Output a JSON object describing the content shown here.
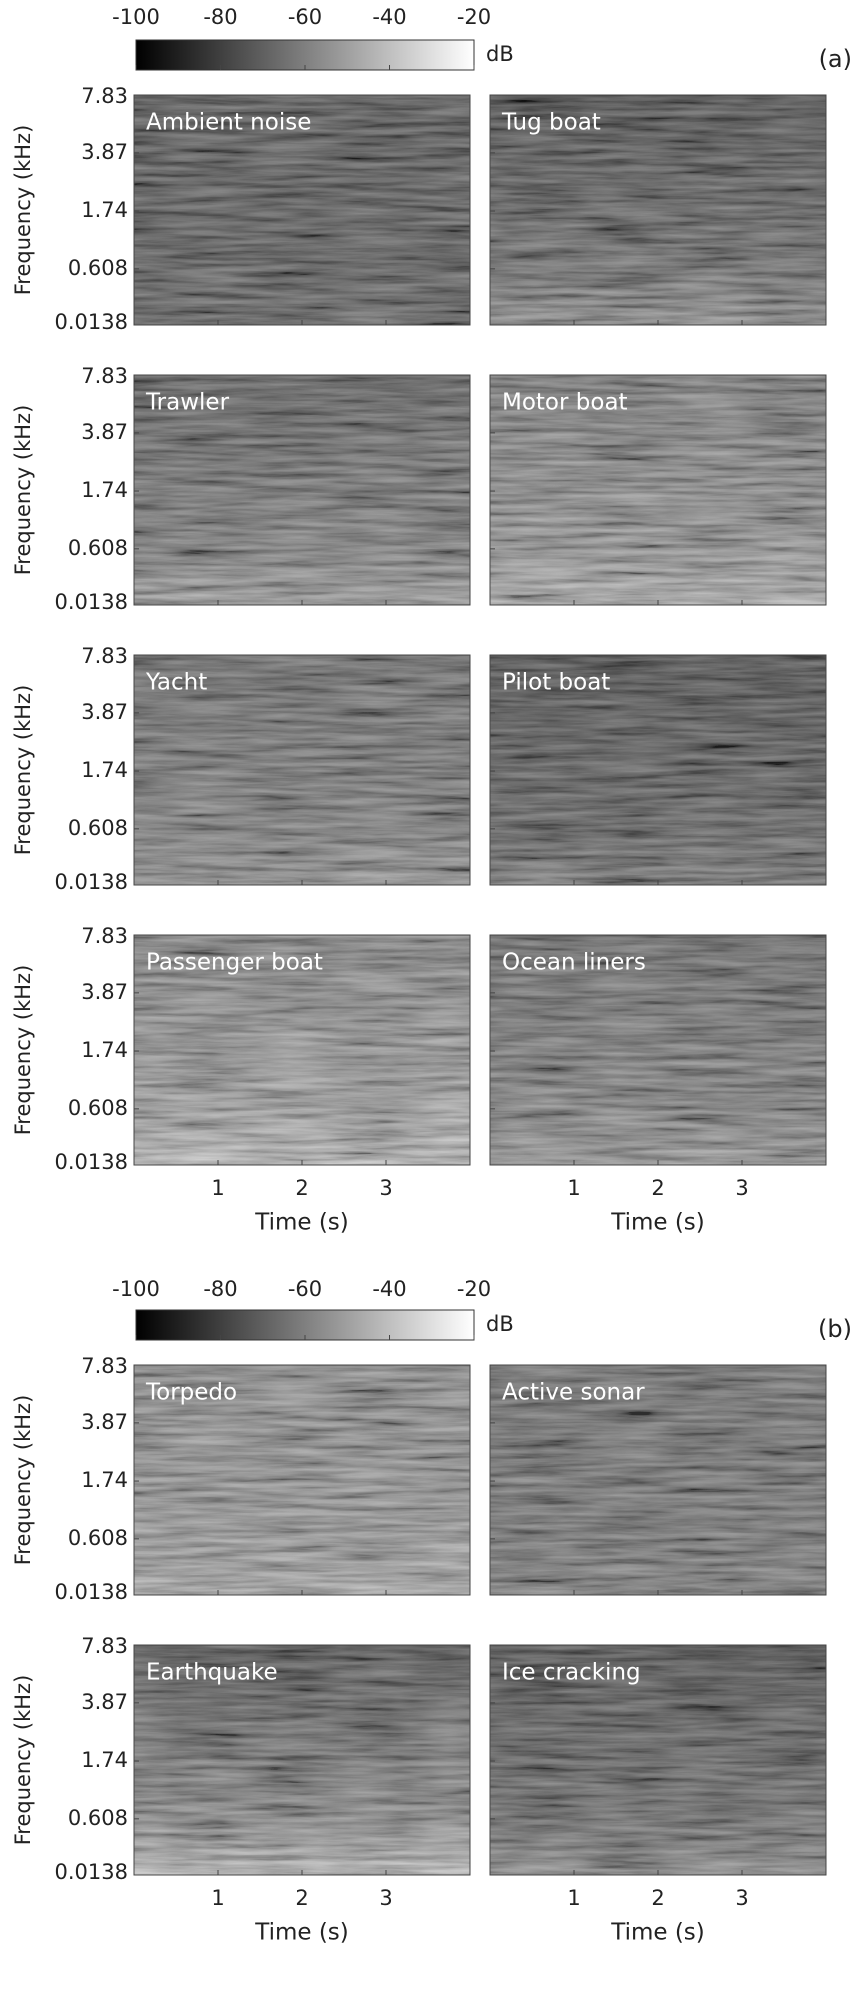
{
  "chart_data": [
    {
      "type": "spectrogram",
      "panel_label": "(a)",
      "colorbar": {
        "label": "dB",
        "lim": [
          -100,
          -20
        ],
        "ticks": [
          -100,
          -80,
          -60,
          -40,
          -20
        ]
      },
      "xlabel": "Time (s)",
      "ylabel": "Frequency (kHz)",
      "xlim": [
        0,
        4
      ],
      "xticks": [
        1,
        2,
        3
      ],
      "ylim": [
        0.0138,
        7.83
      ],
      "yticks": [
        0.0138,
        0.608,
        1.74,
        3.87,
        7.83
      ],
      "yscale": "mel",
      "panels": [
        {
          "title": "Ambient noise"
        },
        {
          "title": "Tug boat"
        },
        {
          "title": "Trawler"
        },
        {
          "title": "Motor boat"
        },
        {
          "title": "Yacht"
        },
        {
          "title": "Pilot boat"
        },
        {
          "title": "Passenger boat"
        },
        {
          "title": "Ocean liners"
        }
      ]
    },
    {
      "type": "spectrogram",
      "panel_label": "(b)",
      "colorbar": {
        "label": "dB",
        "lim": [
          -100,
          -20
        ],
        "ticks": [
          -100,
          -80,
          -60,
          -40,
          -20
        ]
      },
      "xlabel": "Time (s)",
      "ylabel": "Frequency (kHz)",
      "xlim": [
        0,
        4
      ],
      "xticks": [
        1,
        2,
        3
      ],
      "ylim": [
        0.0138,
        7.83
      ],
      "yticks": [
        0.0138,
        0.608,
        1.74,
        3.87,
        7.83
      ],
      "yscale": "mel",
      "panels": [
        {
          "title": "Torpedo"
        },
        {
          "title": "Active sonar"
        },
        {
          "title": "Earthquake"
        },
        {
          "title": "Ice cracking"
        }
      ]
    }
  ]
}
